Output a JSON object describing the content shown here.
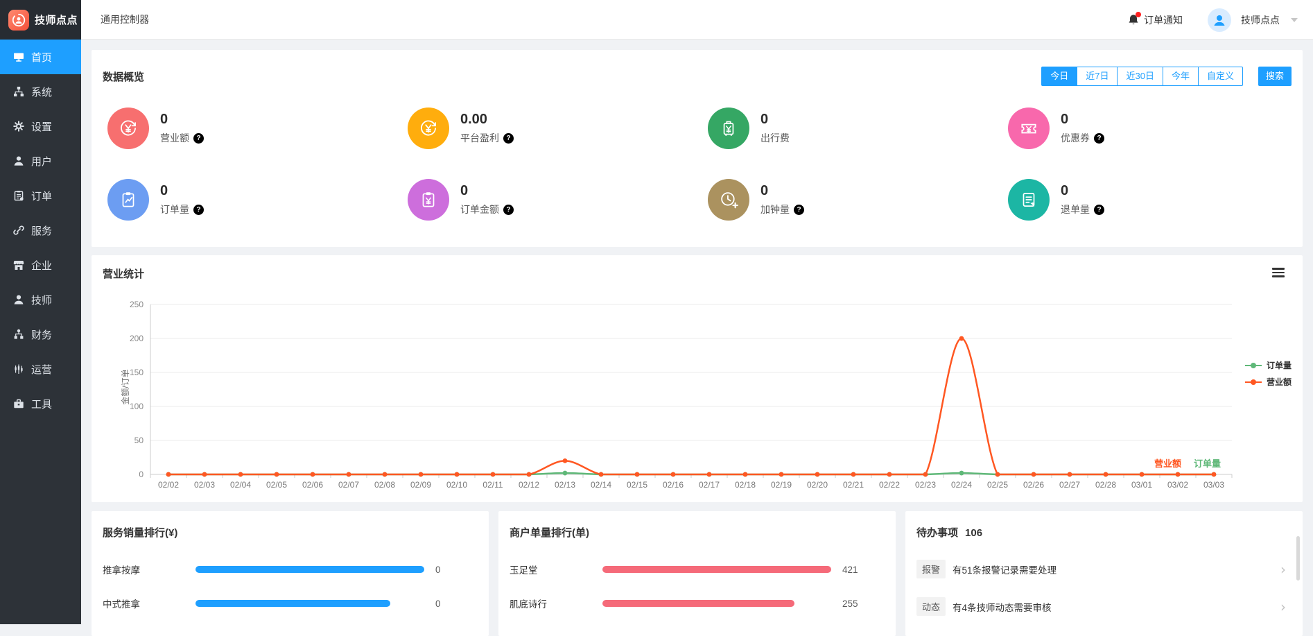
{
  "app": {
    "logo_text": "技师点点",
    "page_title": "通用控制器"
  },
  "topbar": {
    "notification_label": "订单通知",
    "user_name": "技师点点"
  },
  "sidebar": {
    "items": [
      {
        "icon": "monitor-icon",
        "label": "首页",
        "active": true
      },
      {
        "icon": "sitemap-icon",
        "label": "系统",
        "active": false
      },
      {
        "icon": "gear-icon",
        "label": "设置",
        "active": false
      },
      {
        "icon": "user-icon",
        "label": "用户",
        "active": false
      },
      {
        "icon": "clipboard-icon",
        "label": "订单",
        "active": false
      },
      {
        "icon": "link-icon",
        "label": "服务",
        "active": false
      },
      {
        "icon": "store-icon",
        "label": "企业",
        "active": false
      },
      {
        "icon": "user-icon",
        "label": "技师",
        "active": false
      },
      {
        "icon": "nodes-icon",
        "label": "财务",
        "active": false
      },
      {
        "icon": "candles-icon",
        "label": "运营",
        "active": false
      },
      {
        "icon": "toolbox-icon",
        "label": "工具",
        "active": false
      }
    ]
  },
  "overview": {
    "title": "数据概览",
    "filters": [
      {
        "label": "今日",
        "active": true
      },
      {
        "label": "近7日",
        "active": false
      },
      {
        "label": "近30日",
        "active": false
      },
      {
        "label": "今年",
        "active": false
      },
      {
        "label": "自定义",
        "active": false
      }
    ],
    "search_label": "搜索",
    "stats": [
      {
        "value": "0",
        "label": "营业额",
        "help": true,
        "color": "#F76F6F",
        "icon": "yen-cycle-icon"
      },
      {
        "value": "0.00",
        "label": "平台盈利",
        "help": true,
        "color": "#FFAD0D",
        "icon": "yen-cycle-icon"
      },
      {
        "value": "0",
        "label": "出行费",
        "help": false,
        "color": "#35A764",
        "icon": "suitcase-yen-icon"
      },
      {
        "value": "0",
        "label": "优惠券",
        "help": true,
        "color": "#F868AC",
        "icon": "ticket-yen-icon"
      },
      {
        "value": "0",
        "label": "订单量",
        "help": true,
        "color": "#6C9DF2",
        "icon": "clipboard-chart-icon"
      },
      {
        "value": "0",
        "label": "订单金额",
        "help": true,
        "color": "#CD6EDC",
        "icon": "clipboard-yen-icon"
      },
      {
        "value": "0",
        "label": "加钟量",
        "help": true,
        "color": "#AB925F",
        "icon": "clock-plus-icon"
      },
      {
        "value": "0",
        "label": "退单量",
        "help": true,
        "color": "#1CB6A4",
        "icon": "clipboard-list-icon"
      }
    ]
  },
  "chart_panel": {
    "title": "营业统计"
  },
  "chart_data": {
    "type": "line",
    "title": "营业统计",
    "x": [
      "02/02",
      "02/03",
      "02/04",
      "02/05",
      "02/06",
      "02/07",
      "02/08",
      "02/09",
      "02/10",
      "02/11",
      "02/12",
      "02/13",
      "02/14",
      "02/15",
      "02/16",
      "02/17",
      "02/18",
      "02/19",
      "02/20",
      "02/21",
      "02/22",
      "02/23",
      "02/24",
      "02/25",
      "02/26",
      "02/27",
      "02/28",
      "03/01",
      "03/02",
      "03/03"
    ],
    "series": [
      {
        "name": "订单量",
        "color": "#5FB878",
        "values": [
          0,
          0,
          0,
          0,
          0,
          0,
          0,
          0,
          0,
          0,
          0,
          2,
          0,
          0,
          0,
          0,
          0,
          0,
          0,
          0,
          0,
          0,
          2,
          0,
          0,
          0,
          0,
          0,
          0,
          0
        ]
      },
      {
        "name": "营业额",
        "color": "#FF5722",
        "values": [
          0,
          0,
          0,
          0,
          0,
          0,
          0,
          0,
          0,
          0,
          0,
          20,
          0,
          0,
          0,
          0,
          0,
          0,
          0,
          0,
          0,
          0,
          200,
          0,
          0,
          0,
          0,
          0,
          0,
          0
        ]
      }
    ],
    "ylabel": "金额/订单",
    "yticks": [
      0,
      50,
      100,
      150,
      200,
      250
    ],
    "ylim": [
      0,
      250
    ],
    "grid": true,
    "smooth": true,
    "legend_position": "right",
    "inline_labels": [
      {
        "text": "营业额",
        "color": "#FF5722"
      },
      {
        "text": "订单量",
        "color": "#5FB878"
      }
    ]
  },
  "rankings": [
    {
      "title": "服务销量排行(¥)",
      "bar_color": "#1E9FFF",
      "rows": [
        {
          "label": "推拿按摩",
          "value": "0",
          "bar_percent": 100
        },
        {
          "label": "中式推拿",
          "value": "0",
          "bar_percent": 85
        }
      ]
    },
    {
      "title": "商户单量排行(单)",
      "bar_color": "#F56A79",
      "rows": [
        {
          "label": "玉足堂",
          "value": "421",
          "bar_percent": 100
        },
        {
          "label": "肌底诗行",
          "value": "255",
          "bar_percent": 84
        }
      ]
    }
  ],
  "todo": {
    "title": "待办事项",
    "count": "106",
    "items": [
      {
        "tag": "报警",
        "text": "有51条报警记录需要处理"
      },
      {
        "tag": "动态",
        "text": "有4条技师动态需要审核"
      }
    ]
  }
}
